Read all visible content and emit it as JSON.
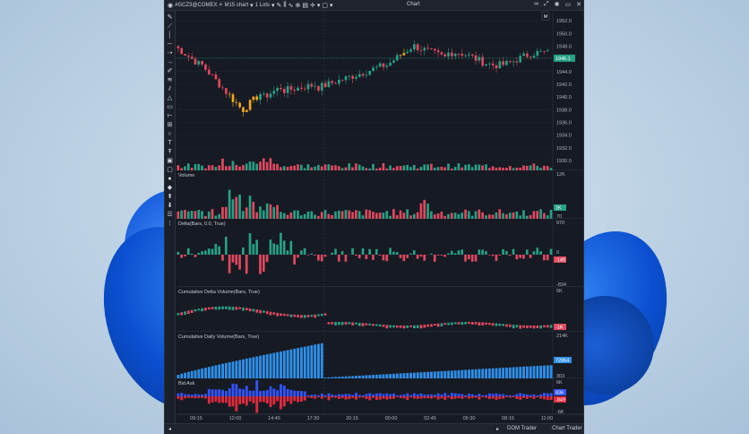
{
  "toolbar": {
    "symbol": "#GCZ3@COMEX",
    "timeframe": "M15 chart",
    "lots": "1 Lots",
    "window_title": "Chart"
  },
  "status": {
    "dom_trader": "DOM Trader",
    "chart_trader": "Chart Trader"
  },
  "left_tools": [
    "pencil-icon",
    "line-icon",
    "vline-icon",
    "hline-icon",
    "ray-icon",
    "arrow-icon",
    "brush-icon",
    "rect-icon",
    "circle-icon",
    "text-icon",
    "marker-icon",
    "flag-icon",
    "up-arrow-icon",
    "down-arrow-icon"
  ],
  "colors": {
    "up": "#26a184",
    "down": "#e0495f",
    "highlight": "#f5a623",
    "bar_blue": "#2e8fe8",
    "bid": "#e02b3e",
    "ask": "#3353ff"
  },
  "chart_data": [
    {
      "type": "candlestick",
      "pane": "price",
      "ylim": [
        1929,
        1953
      ],
      "yticks": [
        "1952.0",
        "1950.0",
        "1948.0",
        "1946.0",
        "1944.0",
        "1942.0",
        "1940.0",
        "1938.0",
        "1936.0",
        "1934.0",
        "1932.0",
        "1930.0"
      ],
      "last_price_label": "1946.1",
      "session_label": "M",
      "xticks": [
        "09:15",
        "12:00",
        "14:45",
        "17:30",
        "20:15",
        "00:00",
        "02:45",
        "05:30",
        "08:15",
        "11:00"
      ]
    },
    {
      "type": "bar",
      "pane": "volume",
      "title": "Volume",
      "yticks": [
        "12K",
        "2K",
        "70"
      ],
      "last_label": "2K"
    },
    {
      "type": "bar",
      "pane": "delta",
      "title": "Delta(Bars, 0.0, True)",
      "yticks": [
        "970",
        "0",
        "-834"
      ],
      "last_label": "-149"
    },
    {
      "type": "bar",
      "pane": "cumulative-delta",
      "title": "Cumulative Delta Volume(Bars, True)",
      "yticks": [
        "5K",
        "-1K"
      ],
      "last_label": "-1K"
    },
    {
      "type": "bar",
      "pane": "cumulative-daily",
      "title": "Cumulative Daily Volume(Bars, True)",
      "yticks": [
        "214K",
        "72K",
        "303"
      ],
      "last_label": "72864"
    },
    {
      "type": "bar",
      "pane": "bid-ask",
      "title": "Bid Ask",
      "yticks": [
        "6K",
        "-6K"
      ],
      "labels": [
        "836",
        "-849"
      ]
    }
  ]
}
